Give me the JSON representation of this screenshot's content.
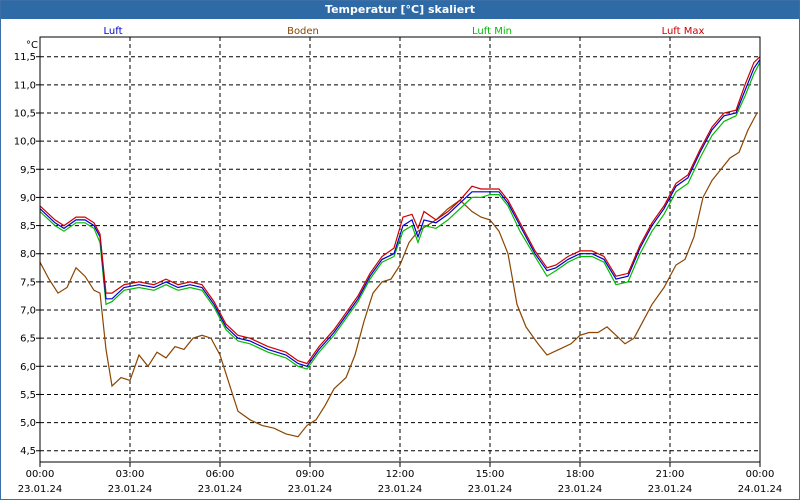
{
  "chart_data": {
    "type": "line",
    "title": "Temperatur [°C] skaliert",
    "ylabel": "°C",
    "ylim": [
      4.3,
      11.85
    ],
    "xlim": [
      0,
      24
    ],
    "grid": true,
    "legend_placement": "top",
    "y_ticks": [
      4.5,
      5.0,
      5.5,
      6.0,
      6.5,
      7.0,
      7.5,
      8.0,
      8.5,
      9.0,
      9.5,
      10.0,
      10.5,
      11.0,
      11.5
    ],
    "y_tick_labels": [
      "4,5",
      "5,0",
      "5,5",
      "6,0",
      "6,5",
      "7,0",
      "7,5",
      "8,0",
      "8,5",
      "9,0",
      "9,5",
      "10,0",
      "10,5",
      "11,0",
      "11,5"
    ],
    "x_ticks": [
      {
        "x": 0,
        "time": "00:00",
        "date": "23.01.24"
      },
      {
        "x": 3,
        "time": "03:00",
        "date": "23.01.24"
      },
      {
        "x": 6,
        "time": "06:00",
        "date": "23.01.24"
      },
      {
        "x": 9,
        "time": "09:00",
        "date": "23.01.24"
      },
      {
        "x": 12,
        "time": "12:00",
        "date": "23.01.24"
      },
      {
        "x": 15,
        "time": "15:00",
        "date": "23.01.24"
      },
      {
        "x": 18,
        "time": "18:00",
        "date": "23.01.24"
      },
      {
        "x": 21,
        "time": "21:00",
        "date": "23.01.24"
      },
      {
        "x": 24,
        "time": "00:00",
        "date": "24.01.24"
      }
    ],
    "series": [
      {
        "name": "Luft",
        "color": "#0000cc",
        "points": [
          [
            0,
            8.8
          ],
          [
            0.5,
            8.55
          ],
          [
            0.8,
            8.45
          ],
          [
            1.2,
            8.6
          ],
          [
            1.5,
            8.6
          ],
          [
            1.8,
            8.5
          ],
          [
            2.0,
            8.3
          ],
          [
            2.2,
            7.2
          ],
          [
            2.4,
            7.2
          ],
          [
            2.8,
            7.4
          ],
          [
            3.3,
            7.45
          ],
          [
            3.8,
            7.4
          ],
          [
            4.2,
            7.5
          ],
          [
            4.6,
            7.4
          ],
          [
            5.0,
            7.45
          ],
          [
            5.4,
            7.4
          ],
          [
            5.8,
            7.1
          ],
          [
            6.2,
            6.7
          ],
          [
            6.6,
            6.5
          ],
          [
            7.0,
            6.45
          ],
          [
            7.6,
            6.3
          ],
          [
            8.2,
            6.2
          ],
          [
            8.6,
            6.05
          ],
          [
            8.9,
            6.0
          ],
          [
            9.3,
            6.3
          ],
          [
            9.8,
            6.6
          ],
          [
            10.2,
            6.9
          ],
          [
            10.6,
            7.2
          ],
          [
            11.0,
            7.6
          ],
          [
            11.4,
            7.9
          ],
          [
            11.8,
            8.0
          ],
          [
            12.1,
            8.5
          ],
          [
            12.4,
            8.6
          ],
          [
            12.6,
            8.3
          ],
          [
            12.8,
            8.6
          ],
          [
            13.2,
            8.55
          ],
          [
            13.6,
            8.7
          ],
          [
            14.0,
            8.9
          ],
          [
            14.4,
            9.1
          ],
          [
            14.7,
            9.1
          ],
          [
            15.0,
            9.1
          ],
          [
            15.3,
            9.1
          ],
          [
            15.6,
            8.9
          ],
          [
            16.0,
            8.5
          ],
          [
            16.5,
            8.0
          ],
          [
            16.9,
            7.7
          ],
          [
            17.2,
            7.75
          ],
          [
            17.6,
            7.9
          ],
          [
            18.0,
            8.0
          ],
          [
            18.4,
            8.0
          ],
          [
            18.8,
            7.9
          ],
          [
            19.2,
            7.55
          ],
          [
            19.6,
            7.6
          ],
          [
            20.0,
            8.1
          ],
          [
            20.4,
            8.5
          ],
          [
            20.8,
            8.8
          ],
          [
            21.2,
            9.2
          ],
          [
            21.6,
            9.35
          ],
          [
            22.0,
            9.8
          ],
          [
            22.4,
            10.2
          ],
          [
            22.8,
            10.45
          ],
          [
            23.2,
            10.5
          ],
          [
            23.5,
            10.9
          ],
          [
            23.8,
            11.3
          ],
          [
            24.0,
            11.45
          ]
        ]
      },
      {
        "name": "Boden",
        "color": "#8b4500",
        "points": [
          [
            0,
            7.85
          ],
          [
            0.3,
            7.55
          ],
          [
            0.6,
            7.3
          ],
          [
            0.9,
            7.4
          ],
          [
            1.2,
            7.75
          ],
          [
            1.5,
            7.6
          ],
          [
            1.8,
            7.35
          ],
          [
            2.0,
            7.3
          ],
          [
            2.2,
            6.3
          ],
          [
            2.4,
            5.65
          ],
          [
            2.7,
            5.8
          ],
          [
            3.0,
            5.75
          ],
          [
            3.3,
            6.2
          ],
          [
            3.6,
            6.0
          ],
          [
            3.9,
            6.25
          ],
          [
            4.2,
            6.15
          ],
          [
            4.5,
            6.35
          ],
          [
            4.8,
            6.3
          ],
          [
            5.1,
            6.5
          ],
          [
            5.4,
            6.55
          ],
          [
            5.7,
            6.5
          ],
          [
            6.0,
            6.2
          ],
          [
            6.3,
            5.7
          ],
          [
            6.6,
            5.2
          ],
          [
            7.0,
            5.05
          ],
          [
            7.4,
            4.95
          ],
          [
            7.8,
            4.9
          ],
          [
            8.2,
            4.8
          ],
          [
            8.6,
            4.75
          ],
          [
            8.9,
            4.95
          ],
          [
            9.2,
            5.05
          ],
          [
            9.5,
            5.3
          ],
          [
            9.8,
            5.6
          ],
          [
            10.2,
            5.8
          ],
          [
            10.5,
            6.2
          ],
          [
            10.8,
            6.8
          ],
          [
            11.1,
            7.3
          ],
          [
            11.4,
            7.5
          ],
          [
            11.7,
            7.55
          ],
          [
            12.0,
            7.8
          ],
          [
            12.3,
            8.2
          ],
          [
            12.6,
            8.4
          ],
          [
            12.9,
            8.5
          ],
          [
            13.2,
            8.6
          ],
          [
            13.6,
            8.8
          ],
          [
            14.0,
            8.95
          ],
          [
            14.4,
            8.75
          ],
          [
            14.7,
            8.65
          ],
          [
            15.0,
            8.6
          ],
          [
            15.3,
            8.4
          ],
          [
            15.6,
            8.0
          ],
          [
            15.9,
            7.1
          ],
          [
            16.2,
            6.7
          ],
          [
            16.6,
            6.4
          ],
          [
            16.9,
            6.2
          ],
          [
            17.3,
            6.3
          ],
          [
            17.7,
            6.4
          ],
          [
            18.0,
            6.55
          ],
          [
            18.3,
            6.6
          ],
          [
            18.6,
            6.6
          ],
          [
            18.9,
            6.7
          ],
          [
            19.2,
            6.55
          ],
          [
            19.5,
            6.4
          ],
          [
            19.8,
            6.5
          ],
          [
            20.1,
            6.8
          ],
          [
            20.4,
            7.1
          ],
          [
            20.8,
            7.4
          ],
          [
            21.2,
            7.8
          ],
          [
            21.5,
            7.9
          ],
          [
            21.8,
            8.3
          ],
          [
            22.1,
            9.0
          ],
          [
            22.4,
            9.3
          ],
          [
            22.7,
            9.5
          ],
          [
            23.0,
            9.7
          ],
          [
            23.3,
            9.8
          ],
          [
            23.6,
            10.2
          ],
          [
            23.9,
            10.5
          ]
        ]
      },
      {
        "name": "Luft Min",
        "color": "#00bb00",
        "points": [
          [
            0,
            8.75
          ],
          [
            0.5,
            8.5
          ],
          [
            0.8,
            8.4
          ],
          [
            1.2,
            8.55
          ],
          [
            1.5,
            8.55
          ],
          [
            1.8,
            8.45
          ],
          [
            2.0,
            8.2
          ],
          [
            2.2,
            7.1
          ],
          [
            2.4,
            7.15
          ],
          [
            2.8,
            7.35
          ],
          [
            3.3,
            7.4
          ],
          [
            3.8,
            7.35
          ],
          [
            4.2,
            7.45
          ],
          [
            4.6,
            7.35
          ],
          [
            5.0,
            7.4
          ],
          [
            5.4,
            7.35
          ],
          [
            5.8,
            7.05
          ],
          [
            6.2,
            6.65
          ],
          [
            6.6,
            6.45
          ],
          [
            7.0,
            6.4
          ],
          [
            7.6,
            6.25
          ],
          [
            8.2,
            6.15
          ],
          [
            8.6,
            6.0
          ],
          [
            8.9,
            5.95
          ],
          [
            9.3,
            6.25
          ],
          [
            9.8,
            6.55
          ],
          [
            10.2,
            6.85
          ],
          [
            10.6,
            7.15
          ],
          [
            11.0,
            7.55
          ],
          [
            11.4,
            7.85
          ],
          [
            11.8,
            7.95
          ],
          [
            12.1,
            8.4
          ],
          [
            12.4,
            8.5
          ],
          [
            12.6,
            8.2
          ],
          [
            12.8,
            8.5
          ],
          [
            13.2,
            8.45
          ],
          [
            13.6,
            8.6
          ],
          [
            14.0,
            8.8
          ],
          [
            14.4,
            9.0
          ],
          [
            14.7,
            9.0
          ],
          [
            15.0,
            9.05
          ],
          [
            15.3,
            9.05
          ],
          [
            15.6,
            8.85
          ],
          [
            16.0,
            8.4
          ],
          [
            16.5,
            7.95
          ],
          [
            16.9,
            7.6
          ],
          [
            17.2,
            7.7
          ],
          [
            17.6,
            7.85
          ],
          [
            18.0,
            7.95
          ],
          [
            18.4,
            7.95
          ],
          [
            18.8,
            7.85
          ],
          [
            19.2,
            7.45
          ],
          [
            19.6,
            7.5
          ],
          [
            20.0,
            8.0
          ],
          [
            20.4,
            8.4
          ],
          [
            20.8,
            8.7
          ],
          [
            21.2,
            9.1
          ],
          [
            21.6,
            9.25
          ],
          [
            22.0,
            9.7
          ],
          [
            22.4,
            10.1
          ],
          [
            22.8,
            10.35
          ],
          [
            23.2,
            10.45
          ],
          [
            23.5,
            10.8
          ],
          [
            23.8,
            11.2
          ],
          [
            24.0,
            11.4
          ]
        ]
      },
      {
        "name": "Luft Max",
        "color": "#cc0000",
        "points": [
          [
            0,
            8.85
          ],
          [
            0.5,
            8.6
          ],
          [
            0.8,
            8.5
          ],
          [
            1.2,
            8.65
          ],
          [
            1.5,
            8.65
          ],
          [
            1.8,
            8.55
          ],
          [
            2.0,
            8.35
          ],
          [
            2.2,
            7.3
          ],
          [
            2.4,
            7.3
          ],
          [
            2.8,
            7.45
          ],
          [
            3.3,
            7.5
          ],
          [
            3.8,
            7.45
          ],
          [
            4.2,
            7.55
          ],
          [
            4.6,
            7.45
          ],
          [
            5.0,
            7.5
          ],
          [
            5.4,
            7.45
          ],
          [
            5.8,
            7.15
          ],
          [
            6.2,
            6.75
          ],
          [
            6.6,
            6.55
          ],
          [
            7.0,
            6.5
          ],
          [
            7.6,
            6.35
          ],
          [
            8.2,
            6.25
          ],
          [
            8.6,
            6.1
          ],
          [
            8.9,
            6.05
          ],
          [
            9.3,
            6.35
          ],
          [
            9.8,
            6.65
          ],
          [
            10.2,
            6.95
          ],
          [
            10.6,
            7.25
          ],
          [
            11.0,
            7.65
          ],
          [
            11.4,
            7.95
          ],
          [
            11.8,
            8.1
          ],
          [
            12.1,
            8.65
          ],
          [
            12.4,
            8.7
          ],
          [
            12.6,
            8.45
          ],
          [
            12.8,
            8.75
          ],
          [
            13.2,
            8.6
          ],
          [
            13.6,
            8.75
          ],
          [
            14.0,
            8.95
          ],
          [
            14.4,
            9.2
          ],
          [
            14.7,
            9.15
          ],
          [
            15.0,
            9.15
          ],
          [
            15.3,
            9.15
          ],
          [
            15.6,
            8.95
          ],
          [
            16.0,
            8.55
          ],
          [
            16.5,
            8.05
          ],
          [
            16.9,
            7.75
          ],
          [
            17.2,
            7.8
          ],
          [
            17.6,
            7.95
          ],
          [
            18.0,
            8.05
          ],
          [
            18.4,
            8.05
          ],
          [
            18.8,
            7.95
          ],
          [
            19.2,
            7.6
          ],
          [
            19.6,
            7.65
          ],
          [
            20.0,
            8.15
          ],
          [
            20.4,
            8.55
          ],
          [
            20.8,
            8.85
          ],
          [
            21.2,
            9.25
          ],
          [
            21.6,
            9.4
          ],
          [
            22.0,
            9.85
          ],
          [
            22.4,
            10.25
          ],
          [
            22.8,
            10.5
          ],
          [
            23.2,
            10.55
          ],
          [
            23.5,
            11.0
          ],
          [
            23.8,
            11.4
          ],
          [
            24.0,
            11.5
          ]
        ]
      }
    ]
  }
}
